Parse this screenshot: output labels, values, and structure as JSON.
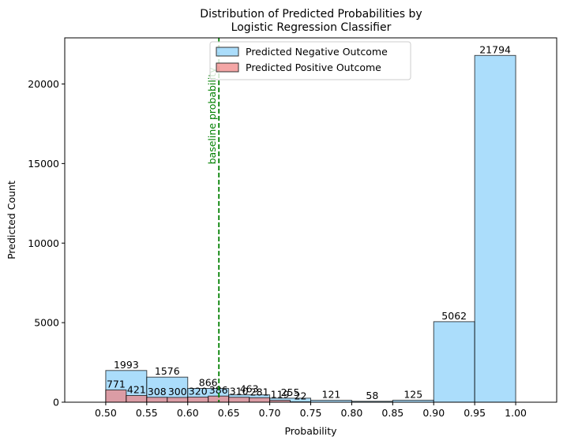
{
  "chart_data": {
    "type": "bar",
    "title_lines": [
      "Distribution of Predicted Probabilities by",
      "Logistic Regression Classifier"
    ],
    "xlabel": "Probability",
    "ylabel": "Predicted Count",
    "xlim": [
      0.45,
      1.05
    ],
    "ylim": [
      0,
      22900
    ],
    "x_ticks": [
      0.5,
      0.55,
      0.6,
      0.65,
      0.7,
      0.75,
      0.8,
      0.85,
      0.9,
      0.95,
      1.0
    ],
    "x_tick_labels": [
      "0.50",
      "0.55",
      "0.60",
      "0.65",
      "0.70",
      "0.75",
      "0.80",
      "0.85",
      "0.90",
      "0.95",
      "1.00"
    ],
    "y_ticks": [
      0,
      5000,
      10000,
      15000,
      20000
    ],
    "y_tick_labels": [
      "0",
      "5000",
      "10000",
      "15000",
      "20000"
    ],
    "grid": false,
    "legend_position": "upper-center",
    "series": [
      {
        "name": "Predicted Negative Outcome",
        "color": "#87cefa",
        "bins": [
          {
            "x0": 0.5,
            "x1": 0.55,
            "value": 1993
          },
          {
            "x0": 0.55,
            "x1": 0.6,
            "value": 1576
          },
          {
            "x0": 0.6,
            "x1": 0.65,
            "value": 866
          },
          {
            "x0": 0.65,
            "x1": 0.7,
            "value": 463
          },
          {
            "x0": 0.7,
            "x1": 0.75,
            "value": 255
          },
          {
            "x0": 0.75,
            "x1": 0.8,
            "value": 121
          },
          {
            "x0": 0.8,
            "x1": 0.85,
            "value": 58
          },
          {
            "x0": 0.85,
            "x1": 0.9,
            "value": 125
          },
          {
            "x0": 0.9,
            "x1": 0.95,
            "value": 5062
          },
          {
            "x0": 0.95,
            "x1": 1.0,
            "value": 21794
          }
        ]
      },
      {
        "name": "Predicted Positive Outcome",
        "color": "#f08080",
        "bins": [
          {
            "x0": 0.5,
            "x1": 0.525,
            "value": 771
          },
          {
            "x0": 0.525,
            "x1": 0.55,
            "value": 421
          },
          {
            "x0": 0.55,
            "x1": 0.575,
            "value": 308
          },
          {
            "x0": 0.575,
            "x1": 0.6,
            "value": 300
          },
          {
            "x0": 0.6,
            "x1": 0.625,
            "value": 320
          },
          {
            "x0": 0.625,
            "x1": 0.65,
            "value": 386
          },
          {
            "x0": 0.65,
            "x1": 0.675,
            "value": 310
          },
          {
            "x0": 0.675,
            "x1": 0.7,
            "value": 281
          },
          {
            "x0": 0.7,
            "x1": 0.725,
            "value": 119
          },
          {
            "x0": 0.725,
            "x1": 0.75,
            "value": 22
          }
        ]
      }
    ],
    "reference_line": {
      "x": 0.638,
      "label": "baseline probability",
      "color": "#008000"
    }
  }
}
